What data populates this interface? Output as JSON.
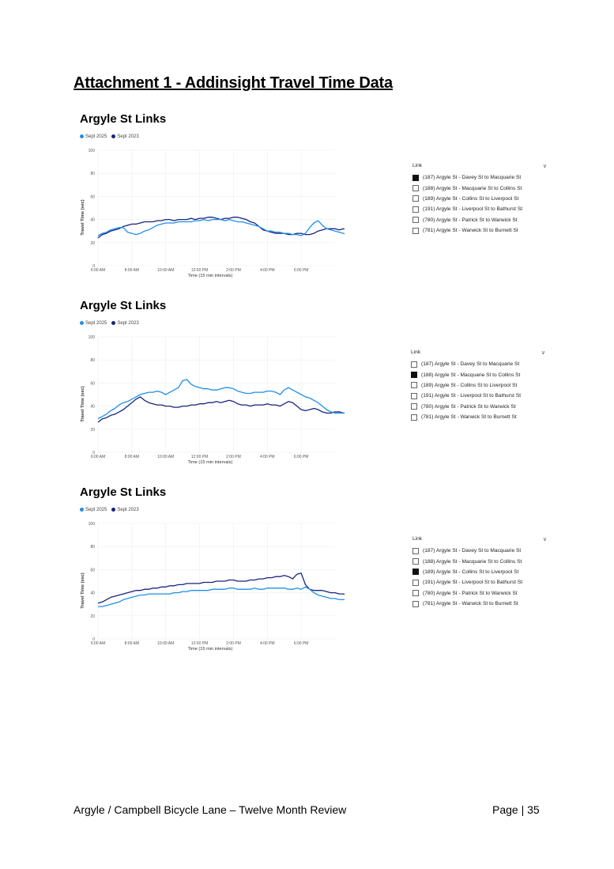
{
  "page": {
    "title": "Attachment 1 - Addinsight Travel Time Data",
    "footer_left": "Argyle / Campbell Bicycle Lane – Twelve Month Review",
    "footer_right": "Page | 35"
  },
  "colors": {
    "sept2025": "#1f8fe8",
    "sept2023": "#1a237e",
    "grid": "#ededed"
  },
  "slicer": {
    "header": "Link",
    "chevron_icon": "chevron-down-icon",
    "items": [
      "(187) Argyle St - Davey St to Macquarie St",
      "(188) Argyle St - Macquarie St to Collins St",
      "(189) Argyle St - Collins St to Liverpool St",
      "(191) Argyle St - Liverpool St to Bathurst St",
      "(780) Argyle St - Patrick St to Warwick St",
      "(781) Argyle St - Warwick St to Burnett St"
    ]
  },
  "chart_data": [
    {
      "type": "line",
      "title": "Argyle St Links",
      "xlabel": "Time (15 min intervals)",
      "ylabel": "Travel Time (sec)",
      "ylim": [
        0,
        100
      ],
      "yticks": [
        "0",
        "20",
        "40",
        "60",
        "80",
        "100"
      ],
      "xticks": [
        "6:00 AM",
        "8:00 AM",
        "10:00 AM",
        "12:00 PM",
        "2:00 PM",
        "4:00 PM",
        "6:00 PM"
      ],
      "x_start_hour": 6,
      "x_step_hours": 0.25,
      "selected_link_index": 0,
      "series": [
        {
          "name": "Sept 2025",
          "color": "#1f8fe8",
          "values": [
            26,
            28,
            29,
            31,
            32,
            33,
            33,
            29,
            28,
            27,
            28,
            30,
            31,
            33,
            35,
            36,
            37,
            37,
            37,
            38,
            38,
            38,
            38,
            39,
            39,
            40,
            39,
            40,
            40,
            40,
            39,
            40,
            39,
            38,
            38,
            37,
            36,
            35,
            34,
            32,
            30,
            30,
            29,
            29,
            28,
            28,
            27,
            27,
            26,
            28,
            33,
            37,
            39,
            35,
            32,
            31,
            30,
            29,
            28,
            26
          ]
        },
        {
          "name": "Sept 2023",
          "color": "#1a237e",
          "values": [
            24,
            27,
            28,
            30,
            31,
            32,
            34,
            35,
            36,
            36,
            37,
            38,
            38,
            38,
            39,
            39,
            40,
            40,
            39,
            40,
            40,
            40,
            41,
            40,
            41,
            41,
            42,
            42,
            41,
            40,
            41,
            41,
            42,
            42,
            41,
            40,
            38,
            37,
            34,
            31,
            30,
            29,
            28,
            28,
            28,
            27,
            27,
            28,
            28,
            27,
            27,
            28,
            30,
            31,
            32,
            32,
            32,
            31,
            32,
            31
          ]
        }
      ]
    },
    {
      "type": "line",
      "title": "Argyle St Links",
      "xlabel": "Time (15 min intervals)",
      "ylabel": "Travel Time (sec)",
      "ylim": [
        0,
        100
      ],
      "yticks": [
        "0",
        "20",
        "40",
        "60",
        "80",
        "100"
      ],
      "xticks": [
        "6:00 AM",
        "8:00 AM",
        "10:00 AM",
        "12:00 PM",
        "2:00 PM",
        "4:00 PM",
        "6:00 PM"
      ],
      "x_start_hour": 6,
      "x_step_hours": 0.25,
      "selected_link_index": 1,
      "series": [
        {
          "name": "Sept 2025",
          "color": "#1f8fe8",
          "values": [
            29,
            31,
            33,
            36,
            38,
            41,
            43,
            44,
            46,
            48,
            50,
            51,
            52,
            52,
            53,
            52,
            50,
            52,
            54,
            56,
            62,
            63,
            59,
            57,
            56,
            55,
            55,
            54,
            54,
            55,
            56,
            56,
            55,
            53,
            52,
            51,
            51,
            52,
            52,
            52,
            53,
            53,
            52,
            50,
            54,
            56,
            54,
            52,
            50,
            48,
            47,
            45,
            43,
            40,
            37,
            35,
            34,
            34,
            34,
            33
          ]
        },
        {
          "name": "Sept 2023",
          "color": "#1a237e",
          "values": [
            26,
            29,
            30,
            32,
            33,
            35,
            37,
            40,
            43,
            46,
            48,
            45,
            43,
            42,
            41,
            41,
            40,
            40,
            39,
            39,
            40,
            40,
            41,
            41,
            42,
            42,
            43,
            43,
            44,
            43,
            44,
            45,
            44,
            42,
            41,
            41,
            40,
            41,
            41,
            41,
            42,
            41,
            41,
            40,
            42,
            44,
            43,
            40,
            37,
            36,
            37,
            38,
            37,
            35,
            34,
            34,
            35,
            35,
            34,
            34
          ]
        }
      ]
    },
    {
      "type": "line",
      "title": "Argyle St Links",
      "xlabel": "Time (15 min intervals)",
      "ylabel": "Travel Time (sec)",
      "ylim": [
        0,
        100
      ],
      "yticks": [
        "0",
        "20",
        "40",
        "60",
        "80",
        "100"
      ],
      "xticks": [
        "6:00 AM",
        "8:00 AM",
        "10:00 AM",
        "12:00 PM",
        "2:00 PM",
        "4:00 PM",
        "6:00 PM"
      ],
      "x_start_hour": 6,
      "x_step_hours": 0.25,
      "selected_link_index": 2,
      "series": [
        {
          "name": "Sept 2025",
          "color": "#1f8fe8",
          "values": [
            28,
            28,
            29,
            30,
            31,
            32,
            34,
            35,
            36,
            37,
            38,
            38,
            39,
            39,
            39,
            39,
            39,
            39,
            40,
            40,
            41,
            41,
            42,
            42,
            42,
            42,
            42,
            43,
            43,
            43,
            43,
            44,
            44,
            43,
            43,
            43,
            43,
            44,
            43,
            43,
            44,
            44,
            44,
            44,
            44,
            43,
            43,
            44,
            43,
            45,
            43,
            40,
            38,
            37,
            36,
            35,
            35,
            34,
            34,
            34
          ]
        },
        {
          "name": "Sept 2023",
          "color": "#1a237e",
          "values": [
            31,
            32,
            34,
            36,
            37,
            38,
            39,
            40,
            41,
            42,
            42,
            43,
            43,
            44,
            44,
            45,
            45,
            46,
            46,
            47,
            47,
            48,
            48,
            48,
            48,
            49,
            49,
            49,
            50,
            50,
            50,
            51,
            51,
            50,
            50,
            50,
            51,
            51,
            52,
            52,
            53,
            53,
            54,
            54,
            55,
            54,
            52,
            56,
            57,
            47,
            43,
            42,
            42,
            42,
            41,
            40,
            40,
            39,
            39,
            38
          ]
        }
      ]
    }
  ]
}
